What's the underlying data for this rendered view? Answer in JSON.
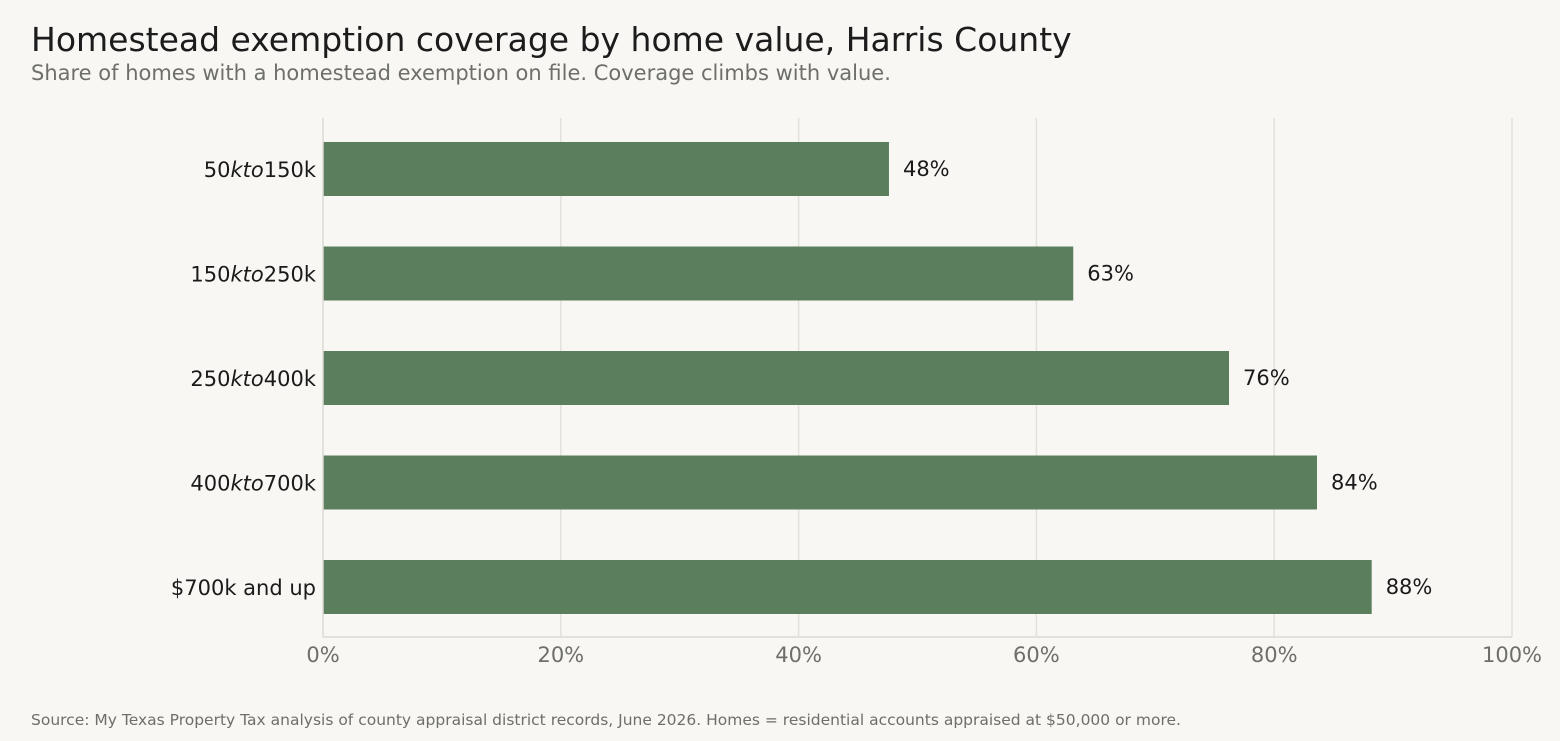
{
  "title": "Homestead exemption coverage by home value, Harris County",
  "subtitle": "Share of homes with a homestead exemption on file. Coverage climbs with value.",
  "source": "Source: My Texas Property Tax analysis of county appraisal district records, June 2026. Homes = residential accounts appraised at $50,000 or more.",
  "chart_data": {
    "type": "bar",
    "orientation": "horizontal",
    "categories": [
      {
        "pre": "50",
        "mid": "kto",
        "post": "150k",
        "mathtext": true
      },
      {
        "pre": "150",
        "mid": "kto",
        "post": "250k",
        "mathtext": true
      },
      {
        "pre": "250",
        "mid": "kto",
        "post": "400k",
        "mathtext": true
      },
      {
        "pre": "400",
        "mid": "kto",
        "post": "700k",
        "mathtext": true
      },
      {
        "pre": "$700k and up",
        "mid": "",
        "post": "",
        "mathtext": false
      }
    ],
    "values": [
      47.6,
      63.1,
      76.2,
      83.6,
      88.2
    ],
    "value_labels": [
      "48%",
      "63%",
      "76%",
      "84%",
      "88%"
    ],
    "xlim": [
      0,
      100
    ],
    "xticks": [
      0,
      20,
      40,
      60,
      80,
      100
    ],
    "xtick_labels": [
      "0%",
      "20%",
      "40%",
      "60%",
      "80%",
      "100%"
    ],
    "grid": "vertical",
    "bar_color": "#5b7f5c",
    "grid_color": "#e3e1dc",
    "axis_color": "#dcdad4"
  }
}
